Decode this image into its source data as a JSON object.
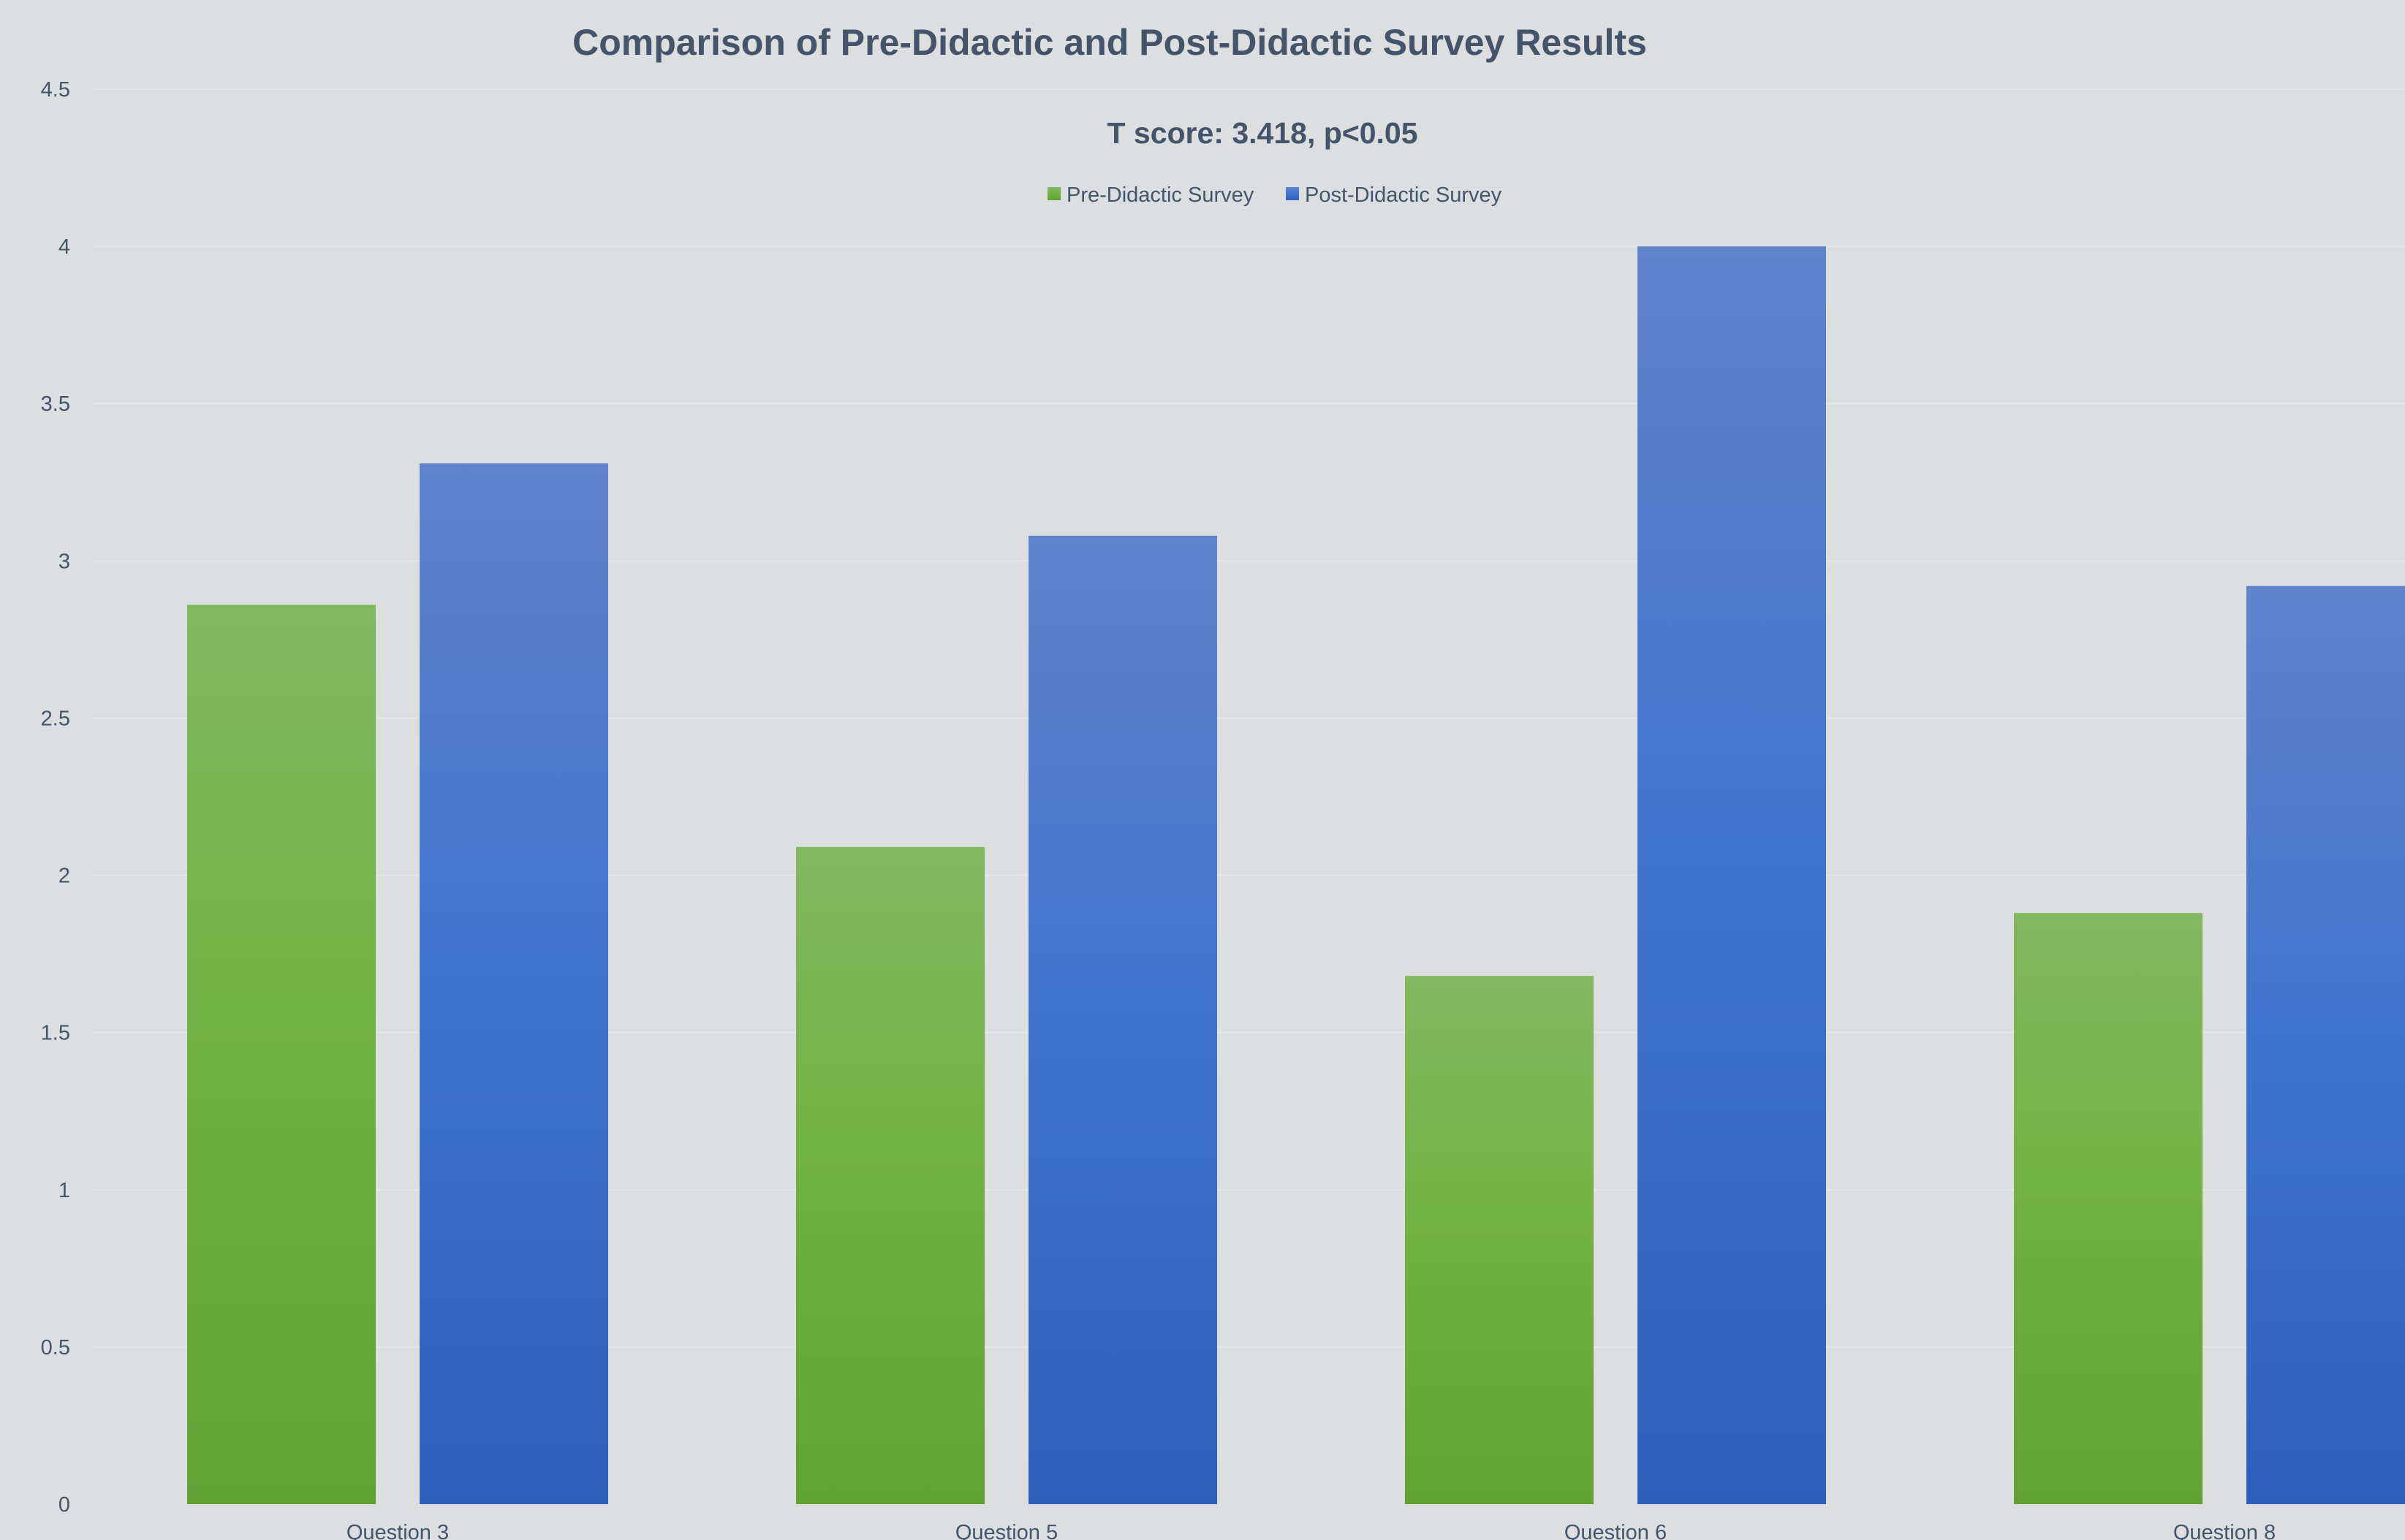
{
  "chart_data": {
    "type": "bar",
    "title": "Comparison of Pre-Didactic and Post-Didactic Survey Results",
    "subtitle": "T score: 3.418, p<0.05",
    "categories": [
      "Question 3",
      "Question 5",
      "Question 6",
      "Question 8"
    ],
    "series": [
      {
        "name": "Pre-Didactic Survey",
        "values": [
          2.86,
          2.09,
          1.68,
          1.88
        ],
        "color": "#70ad47"
      },
      {
        "name": "Post-Didactic Survey",
        "values": [
          3.31,
          3.08,
          4.0,
          2.92
        ],
        "color": "#4472c4"
      }
    ],
    "yticks": [
      "0",
      "0.5",
      "1",
      "1.5",
      "2",
      "2.5",
      "3",
      "3.5",
      "4",
      "4.5"
    ],
    "ylim": [
      0,
      4.5
    ],
    "grid": true,
    "legend_position": "top-center"
  }
}
